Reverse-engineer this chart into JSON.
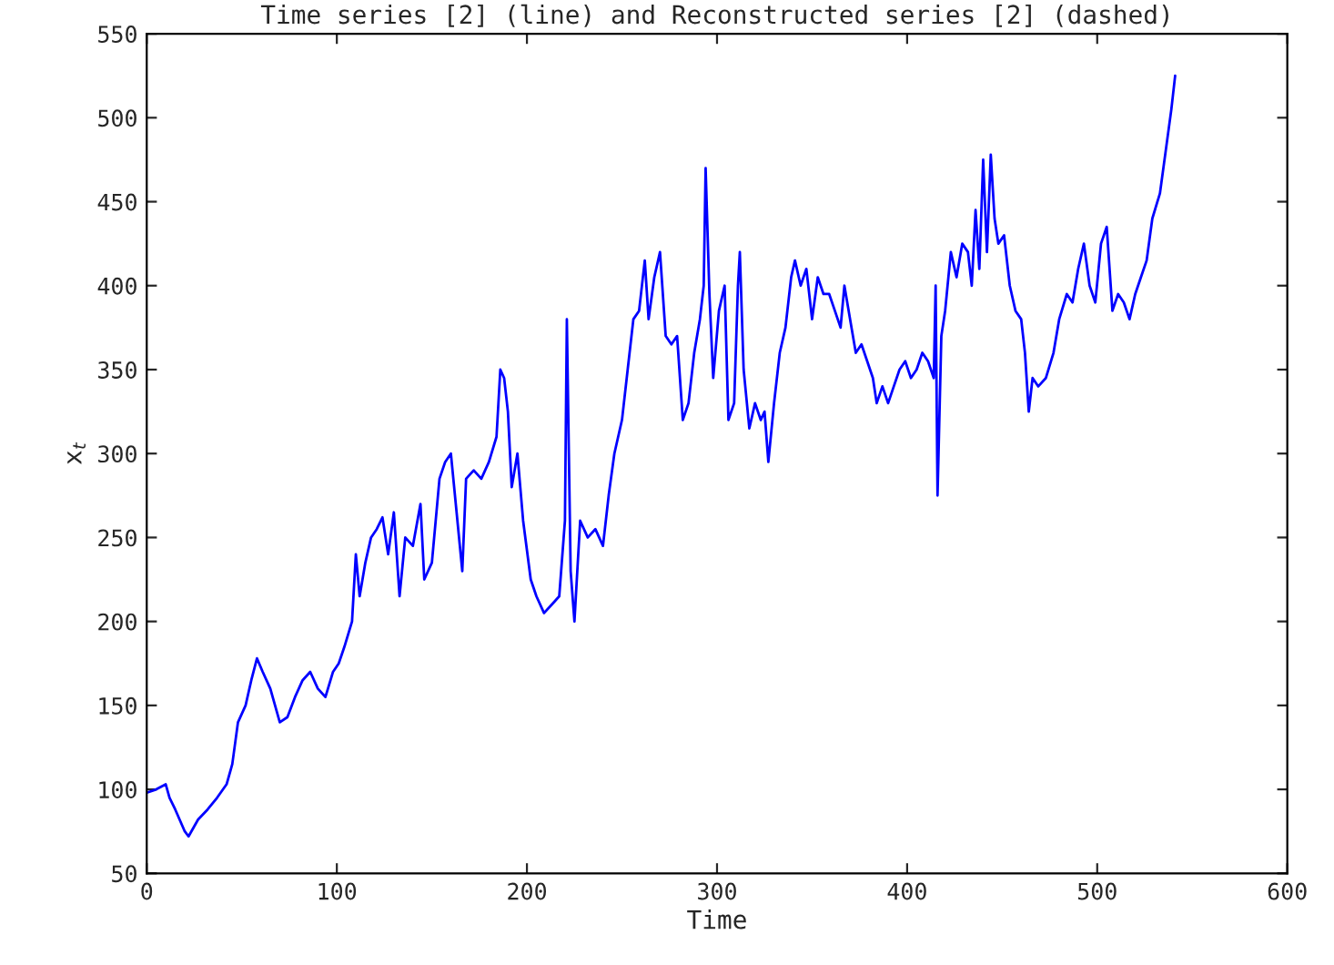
{
  "chart_data": {
    "type": "line",
    "title": "Time series [2] (line) and Reconstructed series [2] (dashed)",
    "xlabel": "Time",
    "ylabel": "x$_{t}$",
    "xlim": [
      0,
      600
    ],
    "xticks": [
      0,
      100,
      200,
      300,
      400,
      500,
      600
    ],
    "ylim": [
      50,
      550
    ],
    "yticks": [
      50,
      100,
      150,
      200,
      250,
      300,
      350,
      400,
      450,
      500,
      550
    ],
    "grid": false,
    "series": [
      {
        "color": "#0000ff",
        "line_style": "solid",
        "x": [
          0,
          5,
          10,
          12,
          15,
          20,
          22,
          27,
          32,
          37,
          42,
          45,
          48,
          52,
          55,
          58,
          61,
          65,
          70,
          74,
          78,
          82,
          86,
          90,
          94,
          98,
          101,
          104,
          108,
          110,
          112,
          115,
          118,
          121,
          124,
          127,
          130,
          133,
          136,
          140,
          144,
          146,
          150,
          154,
          157,
          160,
          163,
          166,
          168,
          172,
          176,
          180,
          184,
          186,
          188,
          190,
          192,
          195,
          198,
          202,
          205,
          209,
          213,
          217,
          220,
          221,
          223,
          225,
          228,
          232,
          236,
          240,
          243,
          246,
          250,
          253,
          256,
          259,
          262,
          264,
          267,
          270,
          273,
          276,
          279,
          282,
          285,
          288,
          291,
          293,
          294,
          296,
          298,
          301,
          304,
          306,
          309,
          311,
          312,
          314,
          317,
          320,
          323,
          325,
          327,
          330,
          333,
          336,
          339,
          341,
          344,
          347,
          350,
          353,
          356,
          359,
          362,
          365,
          367,
          370,
          373,
          376,
          379,
          382,
          384,
          387,
          390,
          393,
          396,
          399,
          402,
          405,
          408,
          411,
          414,
          415,
          416,
          418,
          420,
          423,
          426,
          429,
          432,
          434,
          436,
          438,
          440,
          442,
          444,
          446,
          448,
          451,
          454,
          457,
          460,
          462,
          464,
          466,
          469,
          473,
          477,
          480,
          484,
          487,
          490,
          493,
          496,
          499,
          502,
          505,
          508,
          511,
          514,
          517,
          520,
          523,
          526,
          529,
          533,
          536,
          539,
          541
        ],
        "values": [
          98,
          100,
          103,
          95,
          88,
          75,
          72,
          82,
          88,
          95,
          103,
          115,
          140,
          150,
          165,
          178,
          170,
          160,
          140,
          143,
          155,
          165,
          170,
          160,
          155,
          170,
          175,
          185,
          200,
          240,
          215,
          235,
          250,
          255,
          262,
          240,
          265,
          215,
          250,
          245,
          270,
          225,
          235,
          285,
          295,
          300,
          265,
          230,
          285,
          290,
          285,
          295,
          310,
          350,
          345,
          325,
          280,
          300,
          260,
          225,
          215,
          205,
          210,
          215,
          260,
          380,
          230,
          200,
          260,
          250,
          255,
          245,
          275,
          300,
          320,
          350,
          380,
          385,
          415,
          380,
          405,
          420,
          370,
          365,
          370,
          320,
          330,
          360,
          380,
          400,
          470,
          395,
          345,
          385,
          400,
          320,
          330,
          400,
          420,
          350,
          315,
          330,
          320,
          325,
          295,
          330,
          360,
          375,
          405,
          415,
          400,
          410,
          380,
          405,
          395,
          395,
          385,
          375,
          400,
          380,
          360,
          365,
          355,
          345,
          330,
          340,
          330,
          340,
          350,
          355,
          345,
          350,
          360,
          355,
          345,
          400,
          275,
          370,
          385,
          420,
          405,
          425,
          420,
          400,
          445,
          410,
          475,
          420,
          478,
          440,
          425,
          430,
          400,
          385,
          380,
          360,
          325,
          345,
          340,
          345,
          360,
          380,
          395,
          390,
          410,
          425,
          400,
          390,
          425,
          435,
          385,
          395,
          390,
          380,
          395,
          405,
          415,
          440,
          455,
          480,
          505,
          525
        ]
      }
    ]
  }
}
